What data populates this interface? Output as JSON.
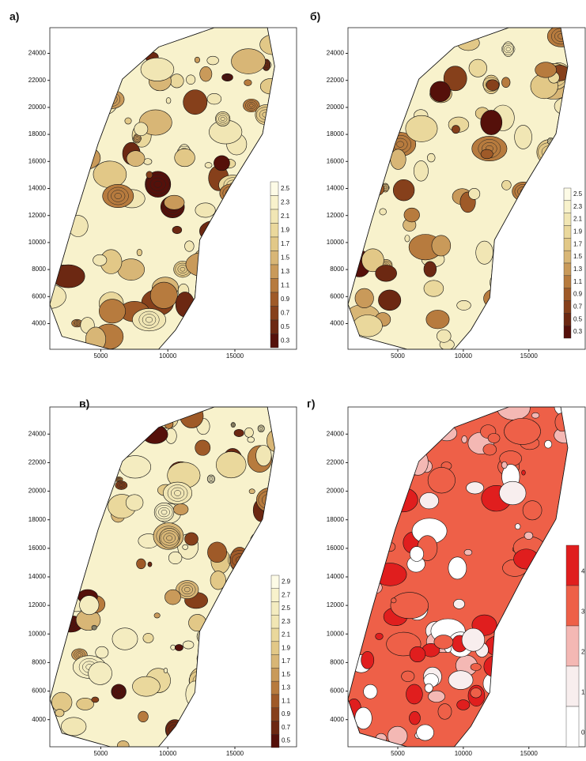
{
  "chart_data": [
    {
      "type": "contour",
      "label": "а)",
      "xlim": [
        1200,
        19600
      ],
      "ylim": [
        2100,
        25900
      ],
      "xticks": [
        5000,
        10000,
        15000
      ],
      "yticks": [
        4000,
        6000,
        8000,
        10000,
        12000,
        14000,
        16000,
        18000,
        20000,
        22000,
        24000
      ],
      "colorbar": {
        "levels": [
          2.5,
          2.3,
          2.1,
          1.9,
          1.7,
          1.5,
          1.3,
          1.1,
          0.9,
          0.7,
          0.5,
          0.3
        ],
        "colors": [
          "#fdfbe6",
          "#f8f2cc",
          "#f1e6b4",
          "#ead89c",
          "#e2c887",
          "#d8b676",
          "#c99a5a",
          "#b77b3e",
          "#9f5a28",
          "#86401b",
          "#6c2812",
          "#55100a"
        ]
      }
    },
    {
      "type": "contour",
      "label": "б)",
      "xlim": [
        1200,
        19600
      ],
      "ylim": [
        2100,
        25900
      ],
      "xticks": [
        5000,
        10000,
        15000
      ],
      "yticks": [
        4000,
        6000,
        8000,
        10000,
        12000,
        14000,
        16000,
        18000,
        20000,
        22000,
        24000
      ],
      "colorbar": {
        "levels": [
          2.5,
          2.3,
          2.1,
          1.9,
          1.7,
          1.5,
          1.3,
          1.1,
          0.9,
          0.7,
          0.5,
          0.3
        ],
        "colors": [
          "#fdfbe6",
          "#f8f2cc",
          "#f1e6b4",
          "#ead89c",
          "#e2c887",
          "#d8b676",
          "#c99a5a",
          "#b77b3e",
          "#9f5a28",
          "#86401b",
          "#6c2812",
          "#55100a"
        ]
      }
    },
    {
      "type": "contour",
      "label": "в)",
      "xlim": [
        1200,
        19600
      ],
      "ylim": [
        2100,
        25900
      ],
      "xticks": [
        5000,
        10000,
        15000
      ],
      "yticks": [
        4000,
        6000,
        8000,
        10000,
        12000,
        14000,
        16000,
        18000,
        20000,
        22000,
        24000
      ],
      "colorbar": {
        "levels": [
          2.9,
          2.7,
          2.5,
          2.3,
          2.1,
          1.9,
          1.7,
          1.5,
          1.3,
          1.1,
          0.9,
          0.7,
          0.5
        ],
        "colors": [
          "#fdfbe6",
          "#f8f2cc",
          "#f4ecc0",
          "#f1e6b4",
          "#ead89c",
          "#e2c887",
          "#d8b676",
          "#c99a5a",
          "#b77b3e",
          "#9f5a28",
          "#86401b",
          "#6c2812",
          "#55100a"
        ]
      }
    },
    {
      "type": "contour",
      "label": "г)",
      "xlim": [
        1200,
        19600
      ],
      "ylim": [
        2100,
        25900
      ],
      "xticks": [
        5000,
        10000,
        15000
      ],
      "yticks": [
        4000,
        6000,
        8000,
        10000,
        12000,
        14000,
        16000,
        18000,
        20000,
        22000,
        24000
      ],
      "colorbar": {
        "levels": [
          4,
          3,
          2,
          1,
          0
        ],
        "colors": [
          "#e01e1e",
          "#ee6048",
          "#f4b8b4",
          "#f8eeee",
          "#ffffff"
        ]
      }
    }
  ]
}
